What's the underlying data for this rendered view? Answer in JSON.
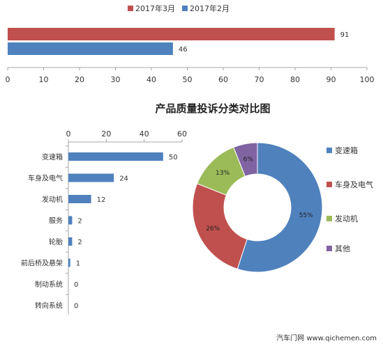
{
  "chart_data": [
    {
      "type": "bar",
      "orientation": "horizontal",
      "categories": [
        ""
      ],
      "series": [
        {
          "name": "2017年3月",
          "values": [
            91
          ],
          "color": "#C0504D"
        },
        {
          "name": "2017年2月",
          "values": [
            46
          ],
          "color": "#4F81BD"
        }
      ],
      "xlim": [
        0,
        100
      ],
      "ticks": [
        "0",
        "10",
        "20",
        "30",
        "40",
        "50",
        "60",
        "70",
        "80",
        "90",
        "100"
      ],
      "legend": "top"
    },
    {
      "type": "bar",
      "orientation": "horizontal",
      "categories": [
        "变速箱",
        "车身及电气",
        "发动机",
        "服务",
        "轮胎",
        "前后桥及悬架",
        "制动系统",
        "转向系统"
      ],
      "values": [
        50,
        24,
        12,
        2,
        2,
        1,
        0,
        0
      ],
      "xlim": [
        0,
        60
      ],
      "ticks": [
        "0",
        "20",
        "40",
        "60"
      ],
      "color": "#4F81BD"
    },
    {
      "type": "pie",
      "donut": true,
      "title": "产品质量投诉分类对比图",
      "slices": [
        {
          "name": "变速箱",
          "value": 55,
          "label": "55%",
          "color": "#4F81BD"
        },
        {
          "name": "车身及电气",
          "value": 26,
          "label": "26%",
          "color": "#C0504D"
        },
        {
          "name": "发动机",
          "value": 13,
          "label": "13%",
          "color": "#9BBB59"
        },
        {
          "name": "其他",
          "value": 6,
          "label": "6%",
          "color": "#8064A2"
        }
      ],
      "legend": "right"
    }
  ],
  "watermark": "汽车门网 www.qichemen.com"
}
